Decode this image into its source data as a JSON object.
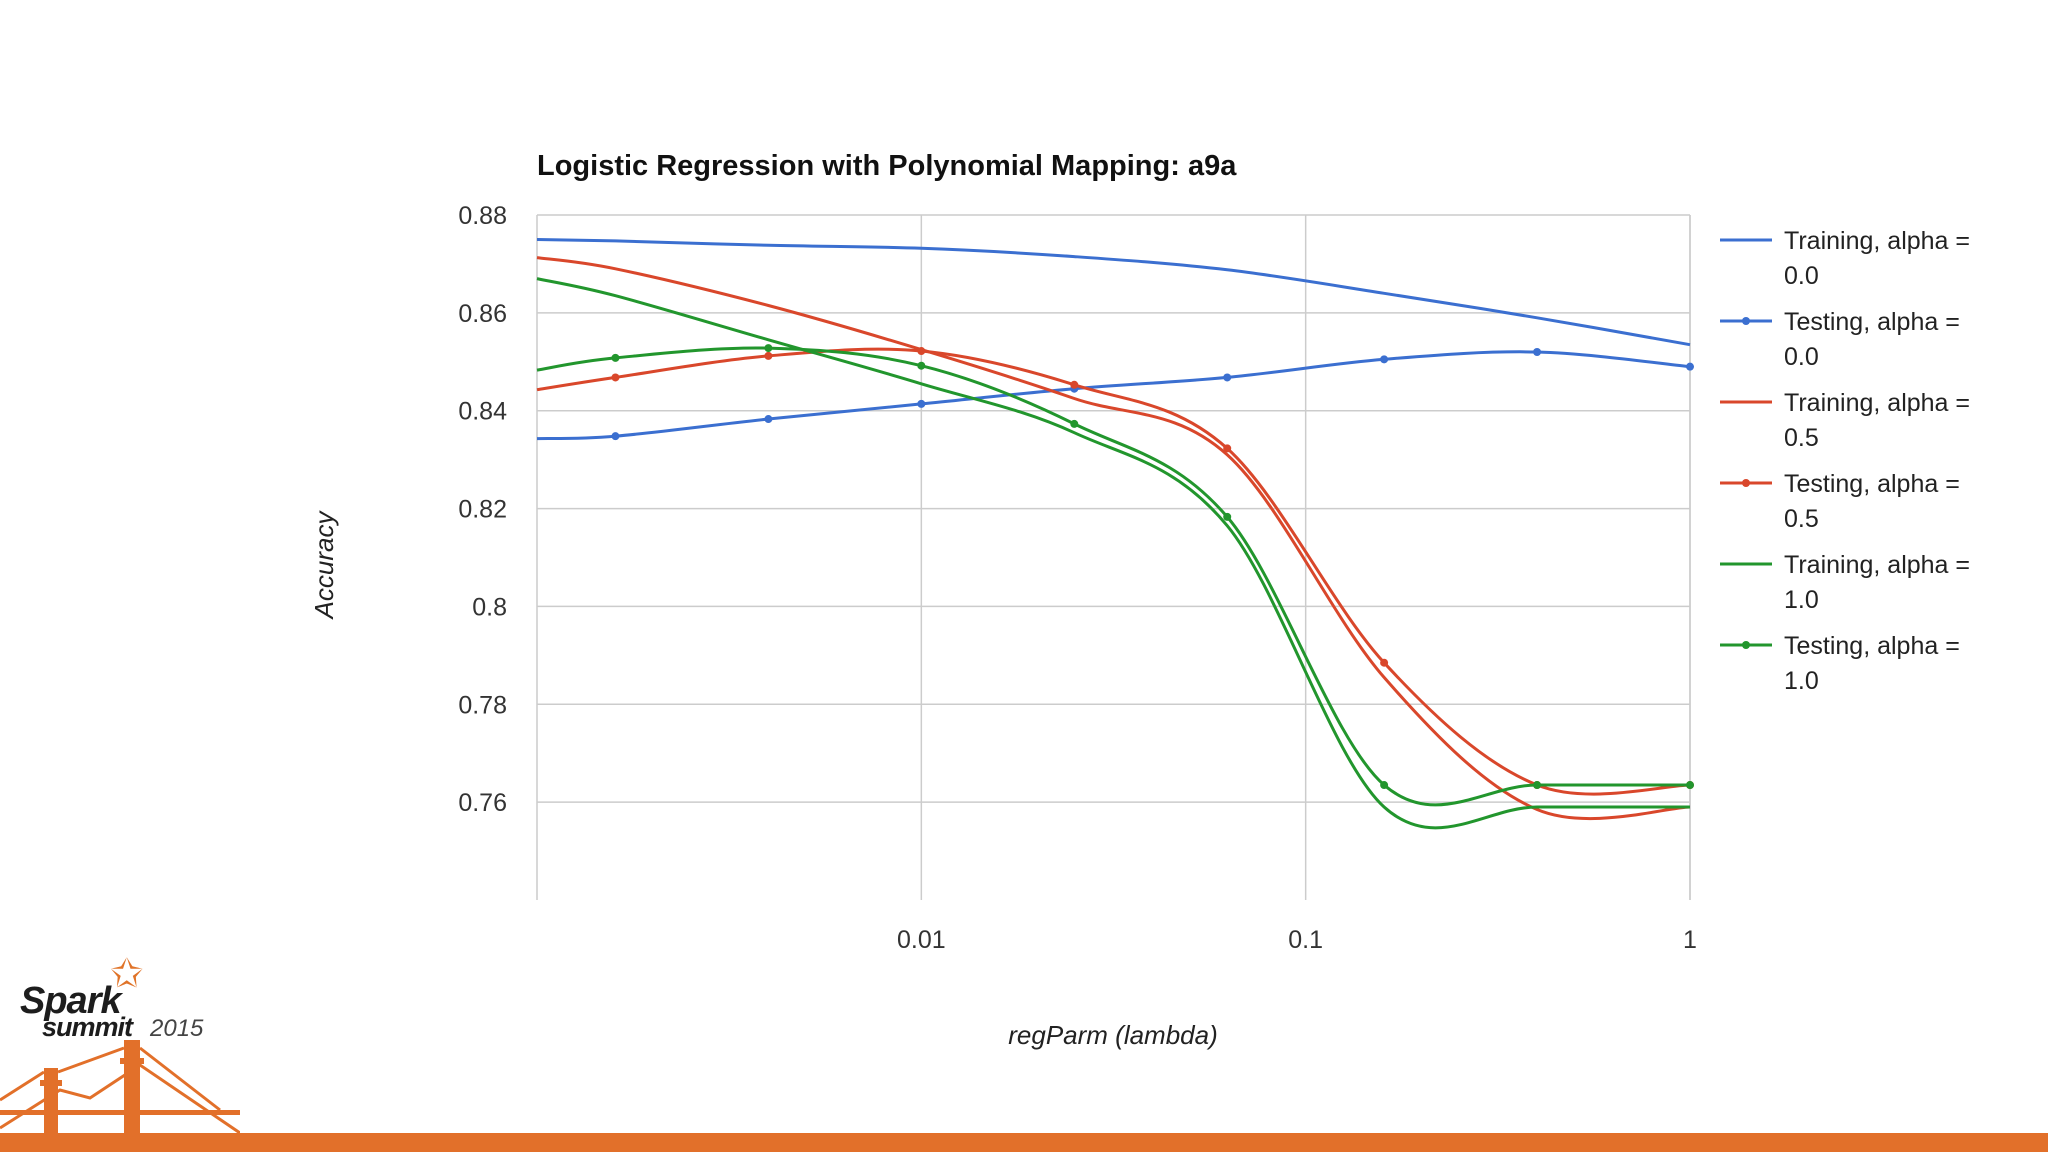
{
  "chart_data": {
    "type": "line",
    "title": "Logistic Regression with Polynomial Mapping: a9a",
    "xlabel": "regParm (lambda)",
    "ylabel": "Accuracy",
    "x_scale": "log",
    "xlim": [
      0.001,
      1
    ],
    "ylim": [
      0.74,
      0.88
    ],
    "x_ticks": [
      {
        "value": 0.01,
        "label": "0.01"
      },
      {
        "value": 0.1,
        "label": "0.1"
      },
      {
        "value": 1,
        "label": "1"
      }
    ],
    "y_ticks": [
      {
        "value": 0.88,
        "label": "0.88"
      },
      {
        "value": 0.86,
        "label": "0.86"
      },
      {
        "value": 0.84,
        "label": "0.84"
      },
      {
        "value": 0.82,
        "label": "0.82"
      },
      {
        "value": 0.8,
        "label": "0.8"
      },
      {
        "value": 0.78,
        "label": "0.78"
      },
      {
        "value": 0.76,
        "label": "0.76"
      }
    ],
    "legend_position": "right",
    "series": [
      {
        "name": "Training, alpha = 0.0",
        "legend_line1": "Training, alpha =",
        "legend_line2": "0.0",
        "color": "#3b6fd0",
        "markers": false,
        "x": [
          0.001,
          0.0016,
          0.004,
          0.01,
          0.025,
          0.0625,
          0.16,
          0.4,
          1
        ],
        "y": [
          0.875,
          0.8747,
          0.8738,
          0.8732,
          0.8715,
          0.8688,
          0.864,
          0.859,
          0.8535
        ]
      },
      {
        "name": "Testing, alpha = 0.0",
        "legend_line1": "Testing, alpha =",
        "legend_line2": "0.0",
        "color": "#3b6fd0",
        "markers": true,
        "x": [
          0.001,
          0.0016,
          0.004,
          0.01,
          0.025,
          0.0625,
          0.16,
          0.4,
          1
        ],
        "y": [
          0.8343,
          0.8348,
          0.8383,
          0.8414,
          0.8445,
          0.8468,
          0.8505,
          0.852,
          0.849
        ]
      },
      {
        "name": "Training, alpha = 0.5",
        "legend_line1": "Training, alpha =",
        "legend_line2": "0.5",
        "color": "#d9472b",
        "markers": false,
        "x": [
          0.001,
          0.0016,
          0.004,
          0.01,
          0.025,
          0.0625,
          0.16,
          0.4,
          1
        ],
        "y": [
          0.8713,
          0.869,
          0.8615,
          0.8525,
          0.8425,
          0.831,
          0.7855,
          0.7585,
          0.759
        ]
      },
      {
        "name": "Testing, alpha = 0.5",
        "legend_line1": "Testing, alpha =",
        "legend_line2": "0.5",
        "color": "#d9472b",
        "markers": true,
        "x": [
          0.001,
          0.0016,
          0.004,
          0.01,
          0.025,
          0.0625,
          0.16,
          0.4,
          1
        ],
        "y": [
          0.8443,
          0.8468,
          0.8512,
          0.8522,
          0.8453,
          0.8323,
          0.7885,
          0.7635,
          0.7635
        ]
      },
      {
        "name": "Training, alpha = 1.0",
        "legend_line1": "Training, alpha =",
        "legend_line2": "1.0",
        "color": "#22962d",
        "markers": false,
        "x": [
          0.001,
          0.0016,
          0.004,
          0.01,
          0.025,
          0.0625,
          0.16,
          0.4,
          1
        ],
        "y": [
          0.867,
          0.8635,
          0.8545,
          0.8455,
          0.8355,
          0.8165,
          0.759,
          0.759,
          0.759
        ]
      },
      {
        "name": "Testing, alpha = 1.0",
        "legend_line1": "Testing, alpha =",
        "legend_line2": "1.0",
        "color": "#22962d",
        "markers": true,
        "x": [
          0.001,
          0.0016,
          0.004,
          0.01,
          0.025,
          0.0625,
          0.16,
          0.4,
          1
        ],
        "y": [
          0.8483,
          0.8508,
          0.8528,
          0.8492,
          0.8373,
          0.8183,
          0.7635,
          0.7635,
          0.7635
        ]
      }
    ]
  },
  "logo": {
    "spark": "Spark",
    "summit": "summit",
    "year": "2015",
    "star": "✩"
  }
}
